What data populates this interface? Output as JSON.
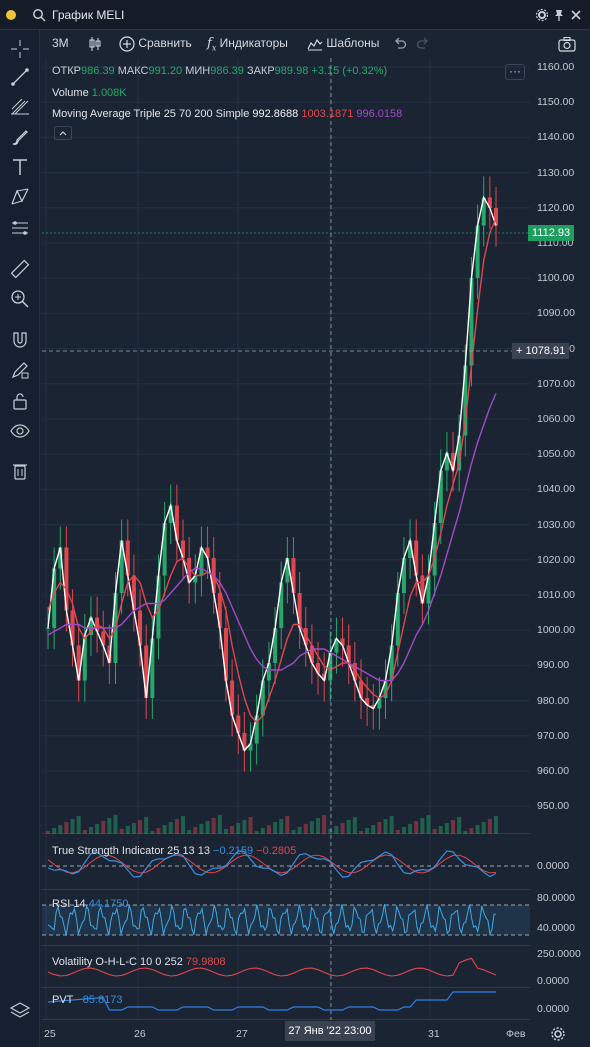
{
  "window": {
    "title": "График MELI"
  },
  "toolbar": {
    "interval": "3М",
    "compare": "Сравнить",
    "indicators": "Индикаторы",
    "templates": "Шаблоны"
  },
  "ohlc": {
    "open_label": "ОТКР",
    "open": "986.39",
    "high_label": "МАКС",
    "high": "991.20",
    "low_label": "МИН",
    "low": "986.39",
    "close_label": "ЗАКР",
    "close": "989.98",
    "change": "+3.15 (+0.32%)"
  },
  "legends": {
    "volume_name": "Volume",
    "volume_value": "1.008K",
    "ma_name": "Moving Average Triple 25 70 200 Simple",
    "ma_v1": "992.8688",
    "ma_v2": "1003.1871",
    "ma_v3": "996.0158",
    "tsi_name": "True Strength Indicator 25 13 13",
    "tsi_v1": "−0.2159",
    "tsi_v2": "−0.2805",
    "rsi_name": "RSI 14",
    "rsi_value": "44.1750",
    "vol_name": "Volatility O-H-L-C 10 0 252",
    "vol_value": "79.9808",
    "pvt_name": "PVT",
    "pvt_value": "−85.8173"
  },
  "price_axis": [
    "1160.00",
    "1150.00",
    "1140.00",
    "1130.00",
    "1120.00",
    "1110.00",
    "1100.00",
    "1090.00",
    "1080.00",
    "1070.00",
    "1060.00",
    "1050.00",
    "1040.00",
    "1030.00",
    "1020.00",
    "1010.00",
    "1000.00",
    "990.00",
    "980.00",
    "970.00",
    "960.00",
    "950.00"
  ],
  "price_tags": {
    "last": "1112.93",
    "crosshair": "1078.91"
  },
  "pane_axes": {
    "tsi": "0.0000",
    "rsi_hi": "80.0000",
    "rsi_lo": "40.0000",
    "vol_hi": "250.0000",
    "vol_lo": "0.0000",
    "pvt": "0.0000"
  },
  "time_axis": [
    "25",
    "26",
    "27",
    "31",
    "Фев"
  ],
  "time_crosshair": "27 Янв '22   23:00",
  "colors": {
    "up": "#26a86a",
    "down": "#e0474c",
    "ma_fast": "#ffffff",
    "ma_mid": "#e0474c",
    "ma_slow": "#a04bc7",
    "tsi": "#3a8fe0",
    "rsi": "#3fa9e8",
    "pvt": "#2f7fe6"
  },
  "chart_data": {
    "type": "line",
    "symbol": "MELI",
    "ylim": [
      945,
      1165
    ],
    "x_ticks": [
      "25",
      "26",
      "27",
      "31",
      "Фев"
    ],
    "series": [
      {
        "values": [
          1005,
          1022,
          1028,
          1010,
          1000,
          990,
          1003,
          1008,
          1004,
          1000,
          995,
          1015,
          1030,
          1020,
          1010,
          1000,
          985,
          1002,
          1020,
          1035,
          1040,
          1030,
          1025,
          1018,
          1020,
          1028,
          1025,
          1015,
          1005,
          990,
          980,
          975,
          970,
          972,
          980,
          990,
          995,
          1005,
          1018,
          1025,
          1015,
          1005,
          1000,
          995,
          992,
          990,
          998,
          1002,
          1000,
          995,
          990,
          985,
          983,
          982,
          985,
          990,
          1000,
          1015,
          1025,
          1030,
          1020,
          1012,
          1020,
          1035,
          1050,
          1055,
          1050,
          1060,
          1080,
          1105,
          1120,
          1128,
          1125,
          1120
        ]
      },
      {
        "values": [
          1010,
          1015,
          1018,
          1016,
          1012,
          1005,
          1002,
          1004,
          1006,
          1005,
          1002,
          1005,
          1012,
          1018,
          1020,
          1018,
          1012,
          1008,
          1010,
          1015,
          1020,
          1024,
          1025,
          1022,
          1020,
          1020,
          1021,
          1020,
          1016,
          1010,
          1000,
          992,
          985,
          980,
          978,
          980,
          985,
          990,
          996,
          1002,
          1006,
          1006,
          1003,
          1000,
          997,
          994,
          993,
          994,
          995,
          995,
          993,
          990,
          988,
          986,
          985,
          986,
          990,
          998,
          1006,
          1014,
          1018,
          1018,
          1020,
          1025,
          1032,
          1040,
          1046,
          1052,
          1064,
          1080,
          1096,
          1110,
          1118,
          1122
        ]
      },
      {
        "values": [
          1003,
          1004,
          1005,
          1006,
          1006,
          1006,
          1005,
          1005,
          1005,
          1005,
          1005,
          1005,
          1006,
          1008,
          1010,
          1011,
          1012,
          1012,
          1012,
          1013,
          1015,
          1017,
          1019,
          1021,
          1022,
          1022,
          1021,
          1020,
          1018,
          1015,
          1011,
          1007,
          1003,
          999,
          996,
          994,
          993,
          993,
          993,
          994,
          995,
          997,
          998,
          999,
          999,
          999,
          998,
          997,
          996,
          995,
          994,
          993,
          992,
          991,
          990,
          990,
          990,
          992,
          995,
          999,
          1003,
          1006,
          1010,
          1015,
          1020,
          1026,
          1032,
          1038,
          1045,
          1052,
          1058,
          1063,
          1068,
          1072
        ]
      }
    ]
  }
}
